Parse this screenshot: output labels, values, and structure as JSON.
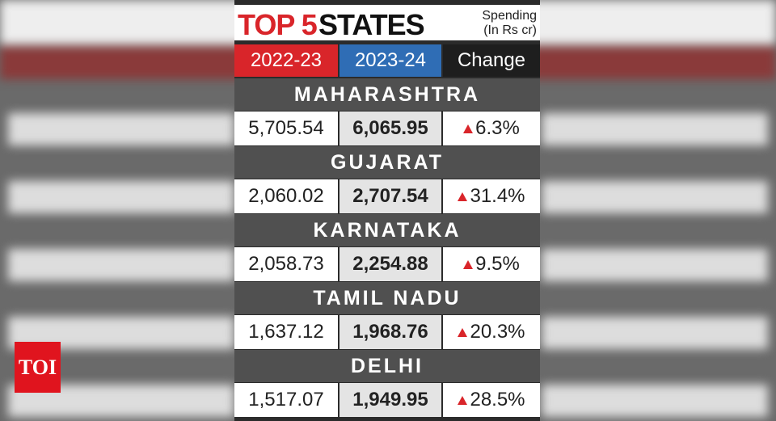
{
  "header": {
    "title_highlight": "TOP 5",
    "title_rest": "STATES",
    "note_line1": "Spending",
    "note_line2": "(In Rs cr)"
  },
  "columns": [
    "2022-23",
    "2023-24",
    "Change"
  ],
  "rows": [
    {
      "state": "MAHARASHTRA",
      "cells": [
        "5,705.54",
        "6,065.95",
        "6.3%"
      ]
    },
    {
      "state": "GUJARAT",
      "cells": [
        "2,060.02",
        "2,707.54",
        "31.4%"
      ]
    },
    {
      "state": "KARNATAKA",
      "cells": [
        "2,058.73",
        "2,254.88",
        "9.5%"
      ]
    },
    {
      "state": "TAMIL NADU",
      "cells": [
        "1,637.12",
        "1,968.76",
        "20.3%"
      ]
    },
    {
      "state": "DELHI",
      "cells": [
        "1,517.07",
        "1,949.95",
        "28.5%"
      ]
    }
  ],
  "logo": "TOI"
}
